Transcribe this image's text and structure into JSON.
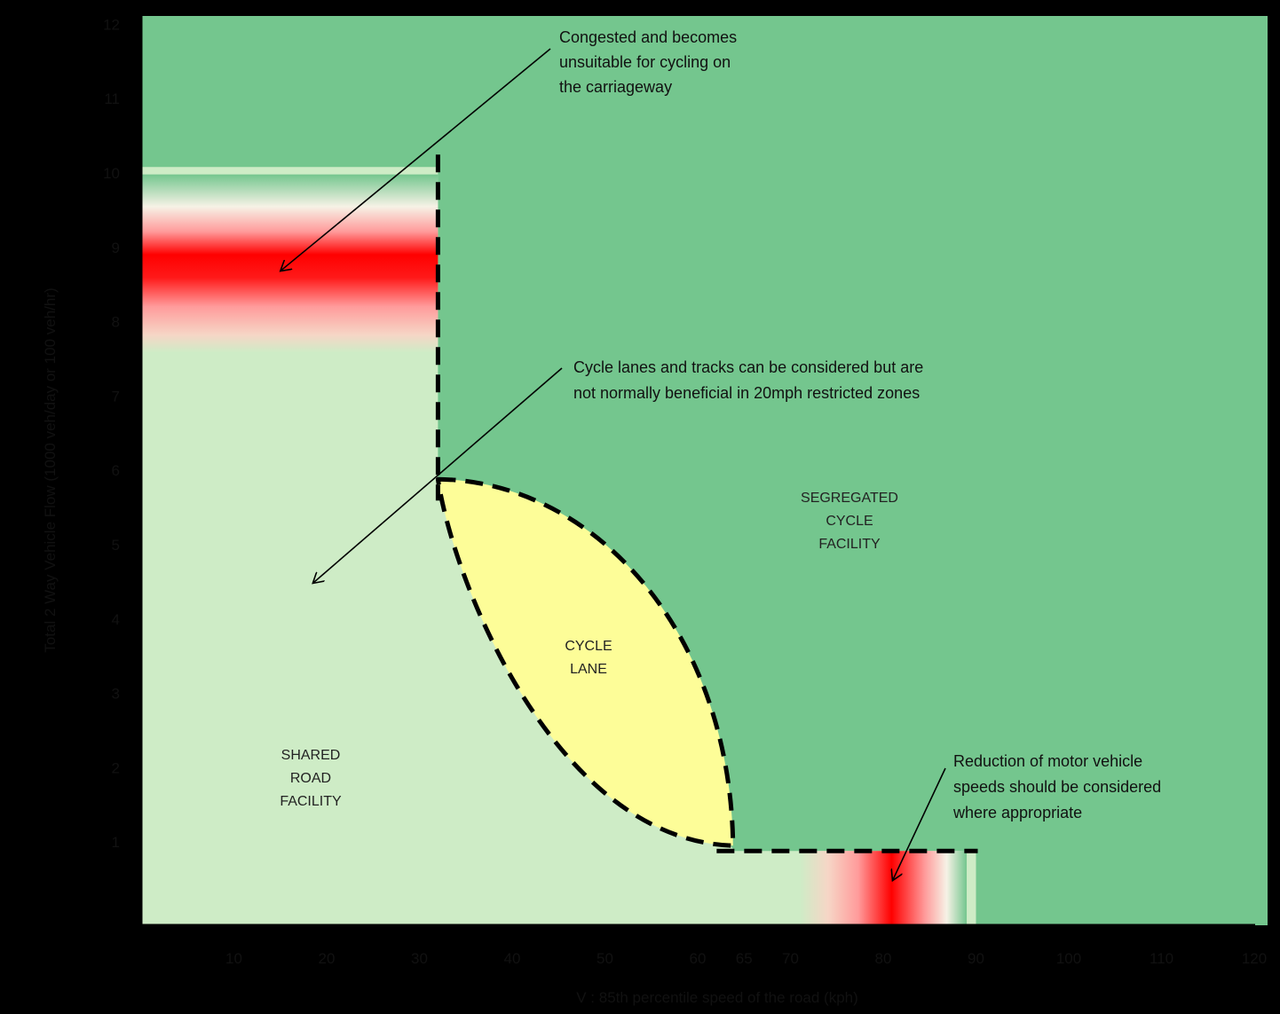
{
  "chart_data": {
    "type": "area",
    "xlabel": "V : 85th percentile speed of the road (kph)",
    "ylabel": "Total 2 Way Vehicle Flow (1000 veh/day or 100 veh/hr)",
    "xlim": [
      0,
      120
    ],
    "ylim": [
      0,
      12
    ],
    "x_ticks": [
      "10",
      "20",
      "30",
      "40",
      "50",
      "60",
      "65",
      "70",
      "80",
      "90",
      "100",
      "110",
      "120"
    ],
    "x_tick_values": [
      10,
      20,
      30,
      40,
      50,
      60,
      65,
      70,
      80,
      90,
      100,
      110,
      120
    ],
    "y_ticks": [
      "1",
      "2",
      "3",
      "4",
      "5",
      "6",
      "7",
      "8",
      "9",
      "10",
      "11",
      "12"
    ],
    "y_tick_values": [
      1,
      2,
      3,
      4,
      5,
      6,
      7,
      8,
      9,
      10,
      11,
      12
    ],
    "zones": [
      {
        "key": "shared",
        "lines": [
          "SHARED",
          "ROAD",
          "FACILITY"
        ],
        "color": "#ceecc6"
      },
      {
        "key": "segregated",
        "lines": [
          "SEGREGATED",
          "CYCLE",
          "FACILITY"
        ],
        "color": "#74c68e"
      },
      {
        "key": "cycle_lane",
        "lines": [
          "CYCLE",
          "LANE"
        ],
        "color": "#fdfd98"
      }
    ],
    "boundaries": {
      "vertical_x": 32,
      "vertical_y_range": [
        6,
        10.2
      ],
      "bottom_y": 1,
      "bottom_x_range": [
        63,
        90
      ],
      "cycle_lane_corners": {
        "top_left": [
          32,
          6
        ],
        "bottom_right": [
          64,
          1
        ]
      }
    },
    "highlights": [
      {
        "key": "congested_band",
        "x_range": [
          0,
          32
        ],
        "y_range": [
          7.7,
          10.1
        ],
        "peak_y": 8.8,
        "color": "#ff0000"
      },
      {
        "key": "speed_band",
        "x_range": [
          71,
          89
        ],
        "y_range": [
          0,
          1
        ],
        "peak_x": 81,
        "color": "#ff0000"
      }
    ],
    "annotations": [
      {
        "key": "congested",
        "lines": [
          "Congested and becomes",
          "unsuitable for cycling on",
          "the carriageway"
        ],
        "arrow_to": [
          15,
          8.8
        ]
      },
      {
        "key": "cycle_lanes",
        "lines": [
          "Cycle lanes and tracks can be considered but are",
          "not normally beneficial in 20mph restricted zones"
        ],
        "arrow_to": [
          18.5,
          4.6
        ]
      },
      {
        "key": "reduction",
        "lines": [
          "Reduction of motor vehicle",
          "speeds should be considered",
          "where appropriate"
        ],
        "arrow_to": [
          81,
          0.6
        ]
      }
    ],
    "colors": {
      "background": "#000000",
      "axis": "#000000",
      "boundary": "#000000"
    }
  }
}
